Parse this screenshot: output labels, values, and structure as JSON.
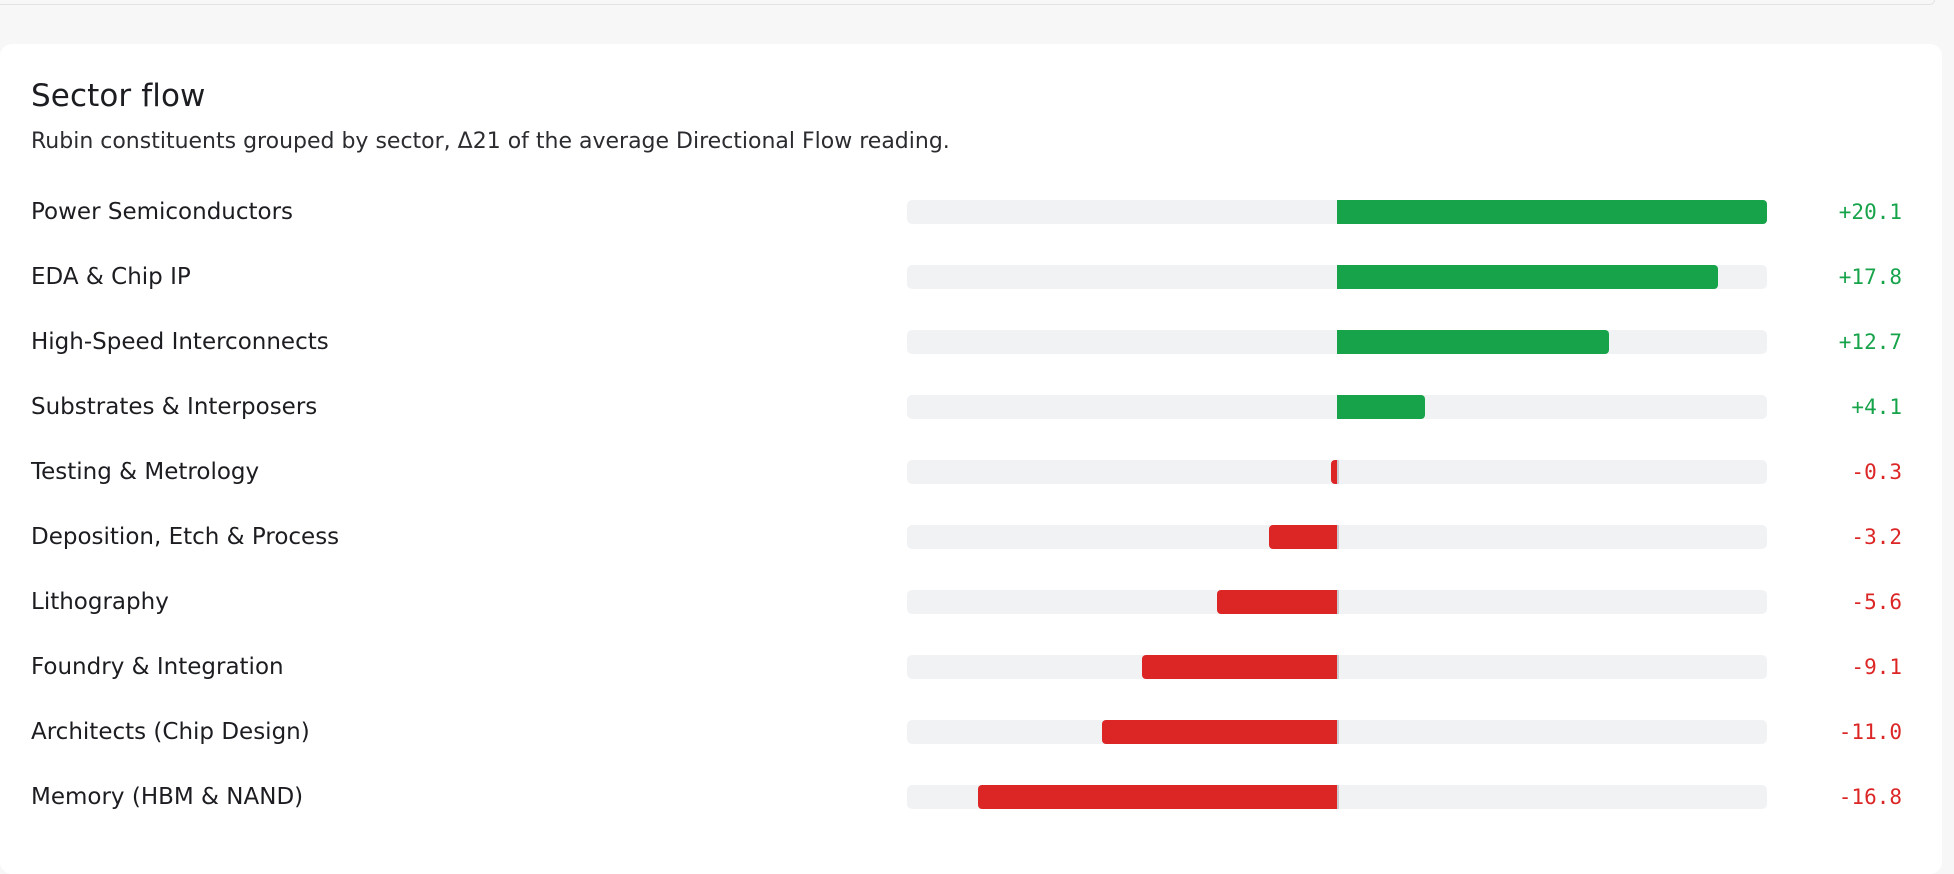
{
  "card": {
    "title": "Sector flow",
    "subtitle": "Rubin constituents grouped by sector, Δ21 of the average Directional Flow reading."
  },
  "colors": {
    "positive": "#16a34a",
    "negative": "#dc2626",
    "track": "#f1f2f4"
  },
  "chart_data": {
    "type": "bar",
    "orientation": "horizontal",
    "diverging": true,
    "xlim": [
      -20.1,
      20.1
    ],
    "categories": [
      "Power Semiconductors",
      "EDA & Chip IP",
      "High-Speed Interconnects",
      "Substrates & Interposers",
      "Testing & Metrology",
      "Deposition, Etch & Process",
      "Lithography",
      "Foundry & Integration",
      "Architects (Chip Design)",
      "Memory (HBM & NAND)"
    ],
    "values": [
      20.1,
      17.8,
      12.7,
      4.1,
      -0.3,
      -3.2,
      -5.6,
      -9.1,
      -11.0,
      -16.8
    ],
    "value_labels": [
      "+20.1",
      "+17.8",
      "+12.7",
      "+4.1",
      "-0.3",
      "-3.2",
      "-5.6",
      "-9.1",
      "-11.0",
      "-16.8"
    ]
  }
}
